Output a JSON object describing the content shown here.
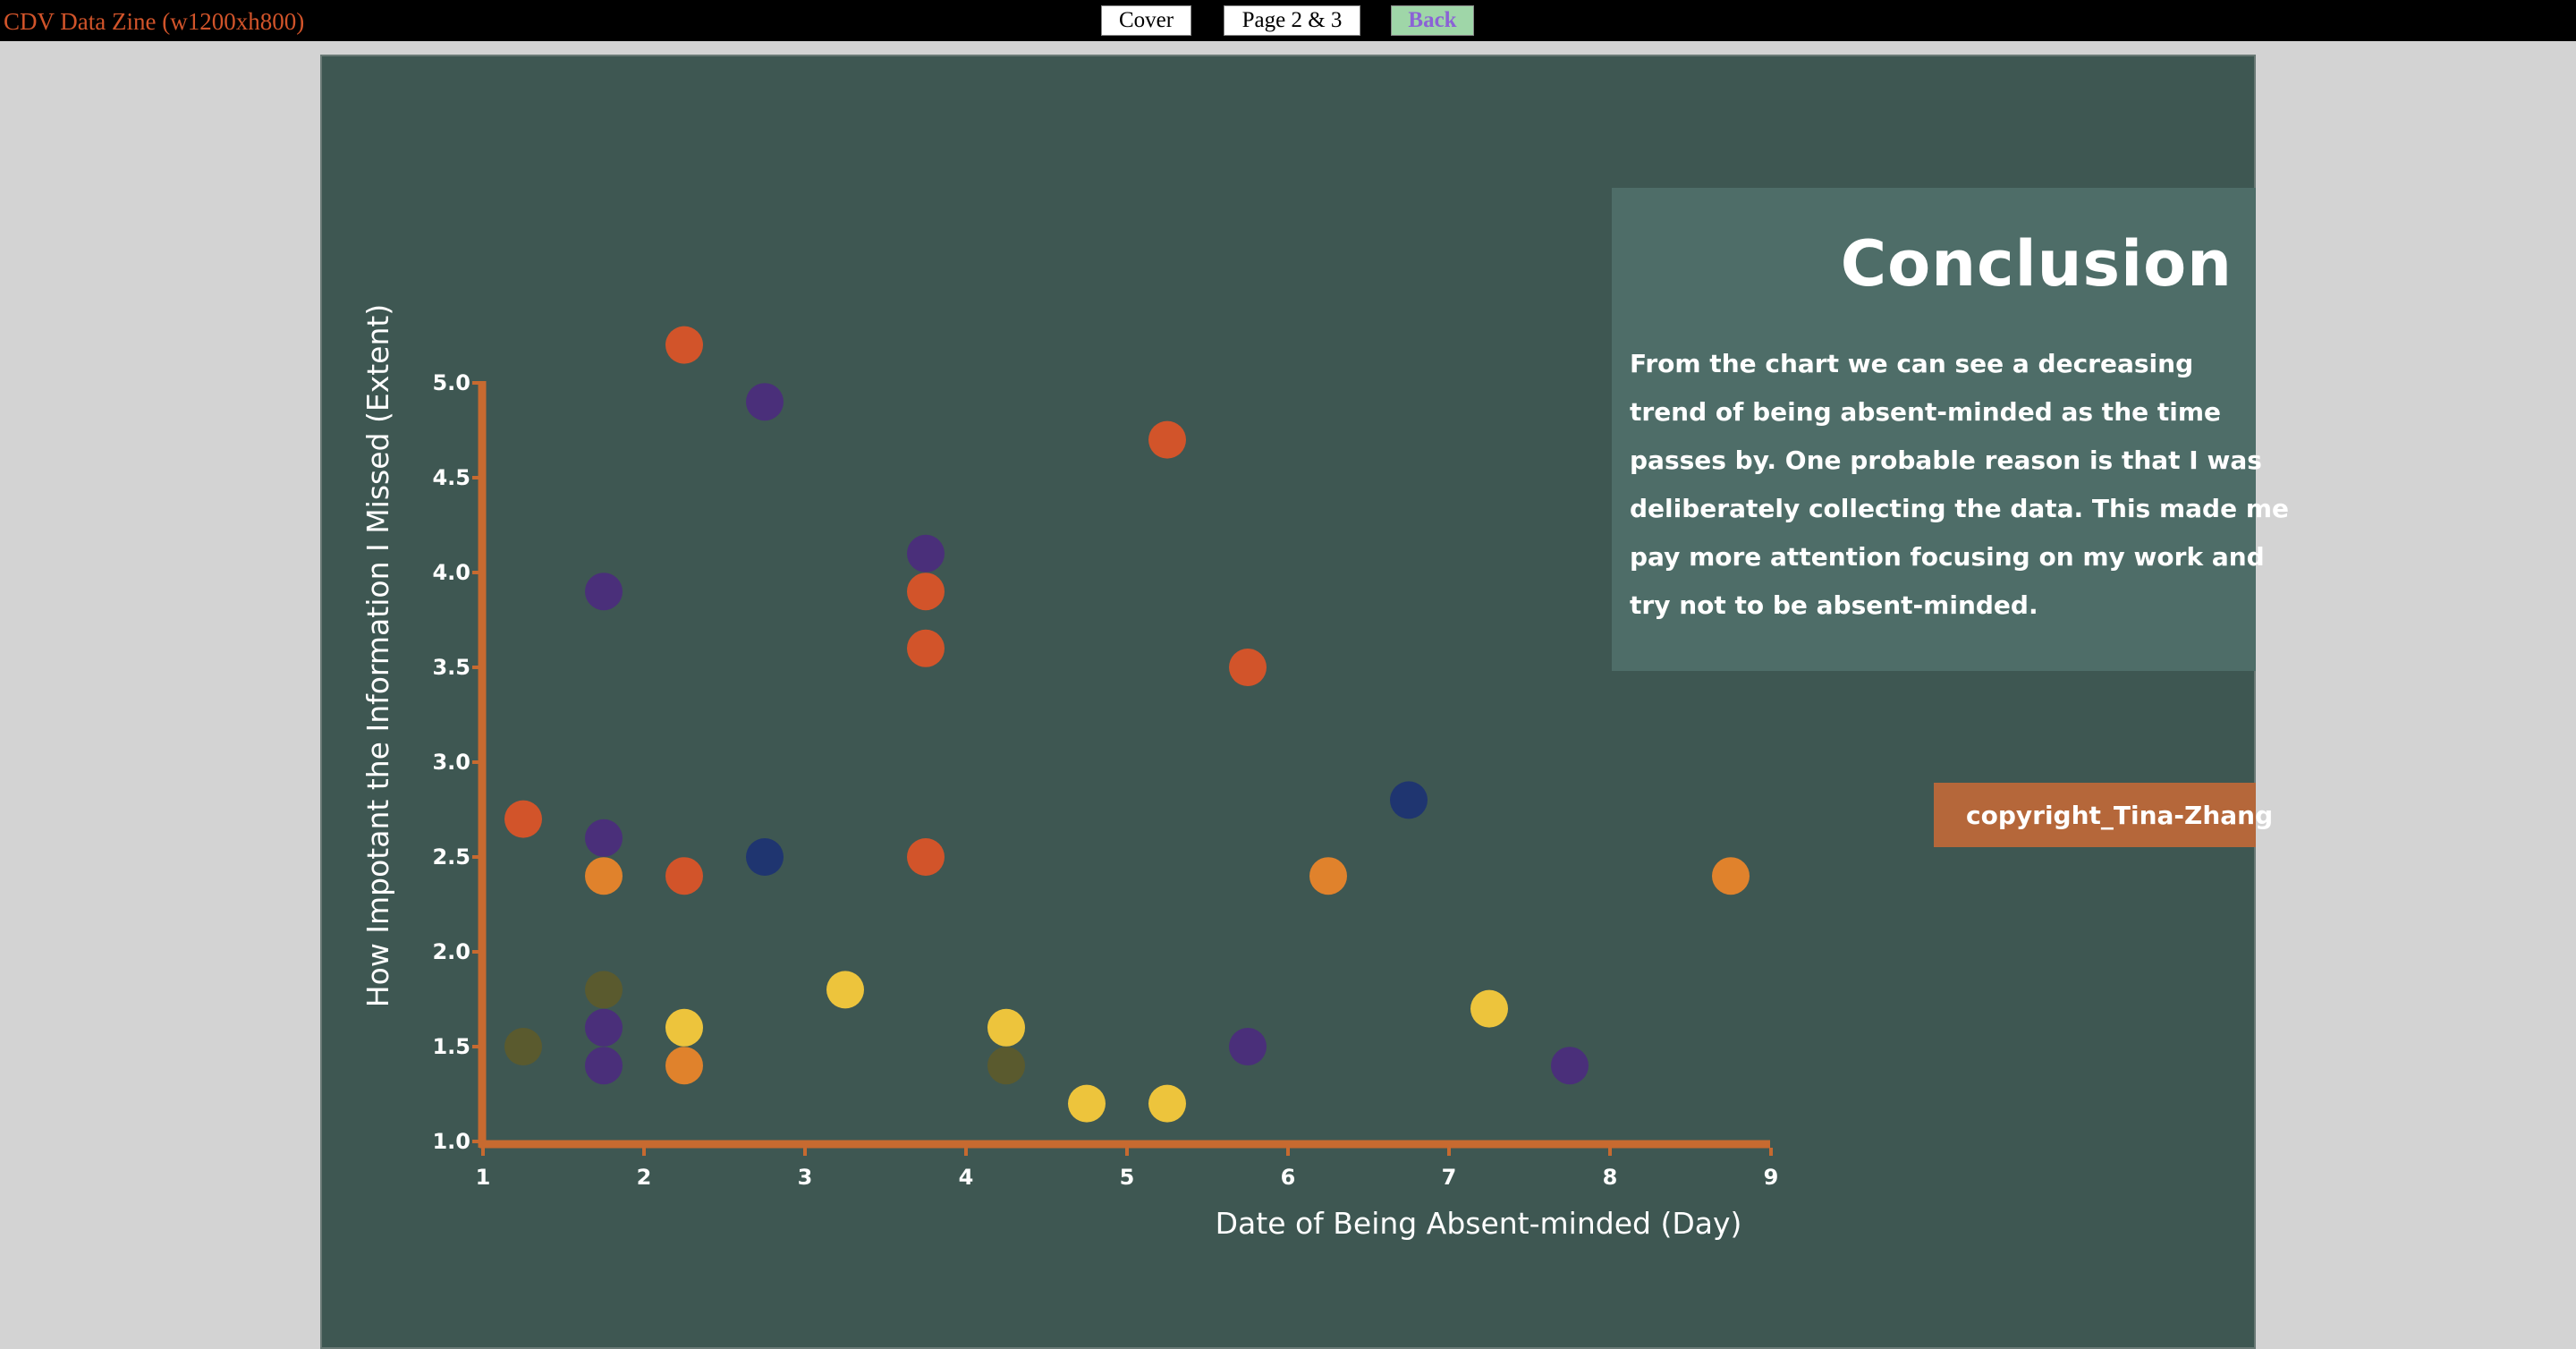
{
  "header": {
    "site_title": "CDV Data Zine (w1200xh800)",
    "nav": {
      "cover": "Cover",
      "pages": "Page 2 & 3",
      "back": "Back"
    }
  },
  "conclusion": {
    "title": "Conclusion",
    "lines": [
      "From the chart we can see a decreasing",
      "trend of being absent-minded as the time",
      "passes by. One probable reason is that I was",
      "deliberately collecting the data. This made me",
      "pay more attention focusing on my work and",
      "try not to be absent-minded."
    ]
  },
  "copyright": "copyright_Tina-Zhang",
  "colors": {
    "page_bg": "#3e5752",
    "axis": "#c76a30",
    "panel": "#4e6d68",
    "copyright_bg": "#b5673a",
    "red_orange": "#d2542a",
    "orange": "#e0822c",
    "purple": "#4a2f7a",
    "navy": "#1f3570",
    "yellow": "#edc43c",
    "olive": "#5a5a2e"
  },
  "chart_data": {
    "type": "scatter",
    "xlabel": "Date of Being Absent-minded (Day)",
    "ylabel": "How Impotant the Information I Missed (Extent)",
    "xlim": [
      1,
      9
    ],
    "ylim": [
      1.0,
      5.0
    ],
    "xticks": [
      "1",
      "2",
      "3",
      "4",
      "5",
      "6",
      "7",
      "8",
      "9"
    ],
    "yticks": [
      "1.0",
      "1.5",
      "2.0",
      "2.5",
      "3.0",
      "3.5",
      "4.0",
      "4.5",
      "5.0"
    ],
    "grid": false,
    "points": [
      {
        "x": 1.25,
        "y": 2.7,
        "color": "red_orange"
      },
      {
        "x": 1.25,
        "y": 1.5,
        "color": "olive"
      },
      {
        "x": 1.75,
        "y": 3.9,
        "color": "purple"
      },
      {
        "x": 1.75,
        "y": 2.6,
        "color": "purple"
      },
      {
        "x": 1.75,
        "y": 2.4,
        "color": "orange"
      },
      {
        "x": 1.75,
        "y": 1.8,
        "color": "olive"
      },
      {
        "x": 1.75,
        "y": 1.6,
        "color": "purple"
      },
      {
        "x": 1.75,
        "y": 1.4,
        "color": "purple"
      },
      {
        "x": 2.25,
        "y": 5.2,
        "color": "red_orange"
      },
      {
        "x": 2.25,
        "y": 2.4,
        "color": "red_orange"
      },
      {
        "x": 2.25,
        "y": 1.6,
        "color": "yellow"
      },
      {
        "x": 2.25,
        "y": 1.4,
        "color": "orange"
      },
      {
        "x": 2.75,
        "y": 4.9,
        "color": "purple"
      },
      {
        "x": 2.75,
        "y": 2.5,
        "color": "navy"
      },
      {
        "x": 3.25,
        "y": 1.8,
        "color": "yellow"
      },
      {
        "x": 3.75,
        "y": 4.1,
        "color": "purple"
      },
      {
        "x": 3.75,
        "y": 3.9,
        "color": "red_orange"
      },
      {
        "x": 3.75,
        "y": 3.6,
        "color": "red_orange"
      },
      {
        "x": 3.75,
        "y": 2.5,
        "color": "red_orange"
      },
      {
        "x": 4.25,
        "y": 1.6,
        "color": "yellow"
      },
      {
        "x": 4.25,
        "y": 1.4,
        "color": "olive"
      },
      {
        "x": 4.75,
        "y": 1.2,
        "color": "yellow"
      },
      {
        "x": 5.25,
        "y": 4.7,
        "color": "red_orange"
      },
      {
        "x": 5.25,
        "y": 1.2,
        "color": "yellow"
      },
      {
        "x": 5.75,
        "y": 3.5,
        "color": "red_orange"
      },
      {
        "x": 5.75,
        "y": 1.5,
        "color": "purple"
      },
      {
        "x": 6.25,
        "y": 2.4,
        "color": "orange"
      },
      {
        "x": 6.75,
        "y": 2.8,
        "color": "navy"
      },
      {
        "x": 7.25,
        "y": 1.7,
        "color": "yellow"
      },
      {
        "x": 7.75,
        "y": 1.4,
        "color": "purple"
      },
      {
        "x": 8.75,
        "y": 2.4,
        "color": "orange"
      }
    ]
  }
}
